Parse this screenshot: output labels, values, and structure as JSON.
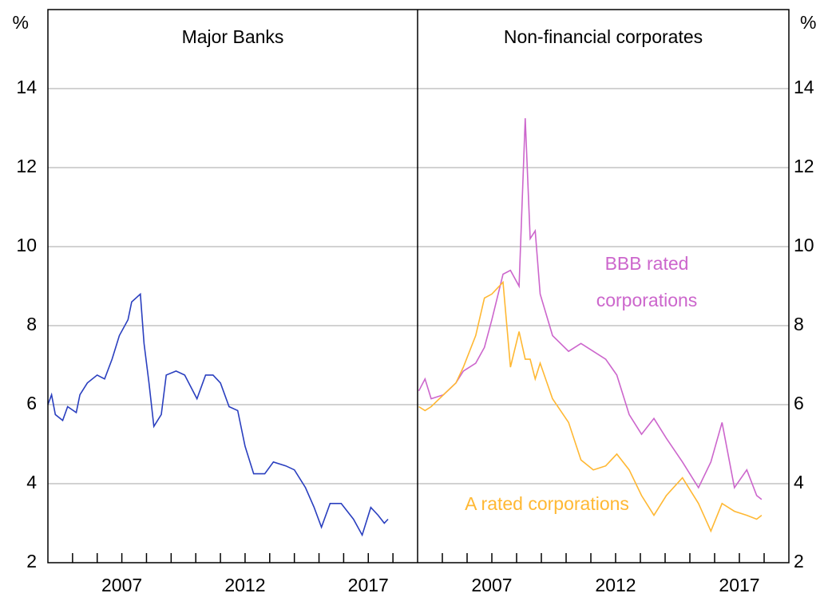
{
  "chart_data": [
    {
      "type": "line",
      "title": "Major Banks",
      "ylabel": "%",
      "xlim": [
        2004,
        2019
      ],
      "xticks": [
        2007,
        2012,
        2017
      ],
      "xminorticks": [
        2005,
        2006,
        2007,
        2008,
        2009,
        2010,
        2011,
        2012,
        2013,
        2014,
        2015,
        2016,
        2017,
        2018
      ],
      "ylim": [
        2,
        16
      ],
      "yticks": [
        2,
        4,
        6,
        8,
        10,
        12,
        14
      ],
      "grid": true,
      "x": [
        2004.0,
        2004.15,
        2004.3,
        2004.6,
        2004.8,
        2005.15,
        2005.3,
        2005.6,
        2006.0,
        2006.3,
        2006.6,
        2006.9,
        2007.25,
        2007.4,
        2007.75,
        2007.9,
        2008.1,
        2008.3,
        2008.6,
        2008.8,
        2009.2,
        2009.55,
        2010.05,
        2010.4,
        2010.7,
        2011.0,
        2011.35,
        2011.7,
        2012.0,
        2012.35,
        2012.8,
        2013.15,
        2013.65,
        2014.0,
        2014.45,
        2014.8,
        2015.1,
        2015.45,
        2015.9,
        2016.4,
        2016.75,
        2017.1,
        2017.4,
        2017.65,
        2017.8
      ],
      "series": [
        {
          "name": "Major Banks",
          "color": "#2a3fbf",
          "values": [
            6.0,
            6.25,
            5.75,
            5.6,
            5.95,
            5.8,
            6.25,
            6.55,
            6.75,
            6.65,
            7.15,
            7.75,
            8.15,
            8.6,
            8.8,
            7.55,
            6.55,
            5.45,
            5.75,
            6.75,
            6.85,
            6.75,
            6.15,
            6.75,
            6.75,
            6.55,
            5.95,
            5.85,
            4.95,
            4.25,
            4.25,
            4.55,
            4.45,
            4.35,
            3.9,
            3.4,
            2.9,
            3.5,
            3.5,
            3.1,
            2.7,
            3.4,
            3.2,
            3.0,
            3.1
          ]
        }
      ]
    },
    {
      "type": "line",
      "title": "Non-financial corporates",
      "ylabel": "%",
      "xlim": [
        2004,
        2019
      ],
      "xticks": [
        2007,
        2012,
        2017
      ],
      "xminorticks": [
        2005,
        2006,
        2007,
        2008,
        2009,
        2010,
        2011,
        2012,
        2013,
        2014,
        2015,
        2016,
        2017,
        2018
      ],
      "ylim": [
        2,
        16
      ],
      "yticks": [
        2,
        4,
        6,
        8,
        10,
        12,
        14
      ],
      "grid": true,
      "x": [
        2004.05,
        2004.3,
        2004.55,
        2005.05,
        2005.55,
        2005.85,
        2006.35,
        2006.7,
        2007.0,
        2007.45,
        2007.75,
        2008.1,
        2008.35,
        2008.55,
        2008.75,
        2008.95,
        2009.45,
        2010.1,
        2010.6,
        2011.1,
        2011.6,
        2012.05,
        2012.55,
        2013.05,
        2013.55,
        2014.05,
        2014.7,
        2015.35,
        2015.85,
        2016.3,
        2016.8,
        2017.3,
        2017.7,
        2017.9
      ],
      "series": [
        {
          "name": "BBB rated corporations",
          "color": "#cc66cc",
          "values": [
            6.35,
            6.65,
            6.15,
            6.25,
            6.55,
            6.85,
            7.05,
            7.45,
            8.15,
            9.3,
            9.4,
            9.0,
            13.25,
            10.2,
            10.4,
            8.8,
            7.75,
            7.35,
            7.55,
            7.35,
            7.15,
            6.75,
            5.75,
            5.25,
            5.65,
            5.15,
            4.55,
            3.9,
            4.55,
            5.55,
            3.9,
            4.35,
            3.7,
            3.6
          ]
        },
        {
          "name": "A rated corporations",
          "color": "#ffb833",
          "values": [
            5.95,
            5.85,
            5.95,
            6.25,
            6.55,
            6.95,
            7.75,
            8.7,
            8.8,
            9.1,
            6.95,
            7.85,
            7.15,
            7.15,
            6.65,
            7.05,
            6.15,
            5.55,
            4.6,
            4.35,
            4.45,
            4.75,
            4.35,
            3.7,
            3.2,
            3.7,
            4.15,
            3.5,
            2.8,
            3.5,
            3.3,
            3.2,
            3.1,
            3.2
          ]
        }
      ],
      "annotations": [
        [
          "BBB rated",
          "corporations"
        ],
        [
          "A rated corporations"
        ]
      ]
    }
  ]
}
